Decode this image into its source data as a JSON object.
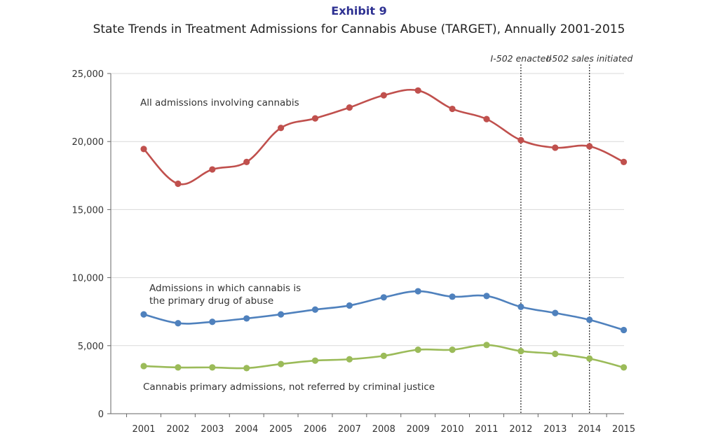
{
  "header": {
    "exhibit": "Exhibit 9",
    "title": "State Trends in Treatment Admissions for Cannabis Abuse (TARGET), Annually 2001-2015"
  },
  "chart_data": {
    "type": "line",
    "title": "State Trends in Treatment Admissions for Cannabis Abuse (TARGET), Annually 2001-2015",
    "xlabel": "",
    "ylabel": "",
    "x": [
      2001,
      2002,
      2003,
      2004,
      2005,
      2006,
      2007,
      2008,
      2009,
      2010,
      2011,
      2012,
      2013,
      2014,
      2015
    ],
    "ylim": [
      0,
      25000
    ],
    "yticks": [
      0,
      5000,
      10000,
      15000,
      20000,
      25000
    ],
    "ytick_labels": [
      "0",
      "5,000",
      "10,000",
      "15,000",
      "20,000",
      "25,000"
    ],
    "grid": true,
    "series": [
      {
        "key": "all",
        "annotation": "All admissions involving cannabis",
        "color": "#c0504d",
        "values": [
          19450,
          16900,
          17950,
          18500,
          21000,
          21700,
          22500,
          23400,
          23750,
          22400,
          21650,
          20100,
          19550,
          19650,
          18500
        ]
      },
      {
        "key": "primary",
        "annotation": "Admissions in which cannabis is the primary drug of abuse",
        "annotation_lines": [
          "Admissions in which cannabis is",
          "the primary drug of abuse"
        ],
        "color": "#4f81bd",
        "values": [
          7300,
          6650,
          6750,
          7000,
          7300,
          7650,
          7950,
          8550,
          9000,
          8600,
          8650,
          7850,
          7400,
          6900,
          6150
        ]
      },
      {
        "key": "not_cj",
        "annotation": "Cannabis primary admissions, not referred by criminal justice",
        "color": "#9bbb59",
        "values": [
          3500,
          3400,
          3400,
          3350,
          3650,
          3900,
          4000,
          4250,
          4700,
          4700,
          5050,
          4600,
          4400,
          4050,
          3400
        ]
      }
    ],
    "vertical_markers": [
      {
        "x": 2012,
        "label": "I-502 enacted"
      },
      {
        "x": 2014,
        "label": "I-502 sales initiated"
      }
    ]
  }
}
